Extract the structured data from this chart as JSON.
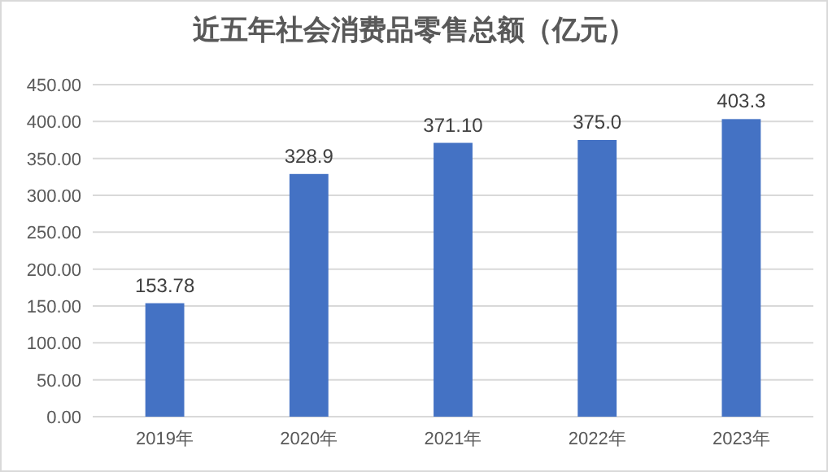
{
  "chart_data": {
    "type": "bar",
    "title": "近五年社会消费品零售总额（亿元）",
    "categories": [
      "2019年",
      "2020年",
      "2021年",
      "2022年",
      "2023年"
    ],
    "values": [
      153.78,
      328.9,
      371.1,
      375.0,
      403.3
    ],
    "value_labels": [
      "153.78",
      "328.9",
      "371.10",
      "375.0",
      "403.3"
    ],
    "color": "#4472c4",
    "ylim": [
      0,
      450
    ],
    "yticks": [
      {
        "value": 0,
        "label": "0.00"
      },
      {
        "value": 50,
        "label": "50.00"
      },
      {
        "value": 100,
        "label": "100.00"
      },
      {
        "value": 150,
        "label": "150.00"
      },
      {
        "value": 200,
        "label": "200.00"
      },
      {
        "value": 250,
        "label": "250.00"
      },
      {
        "value": 300,
        "label": "300.00"
      },
      {
        "value": 350,
        "label": "350.00"
      },
      {
        "value": 400,
        "label": "400.00"
      },
      {
        "value": 450,
        "label": "450.00"
      }
    ],
    "grid": "y"
  }
}
